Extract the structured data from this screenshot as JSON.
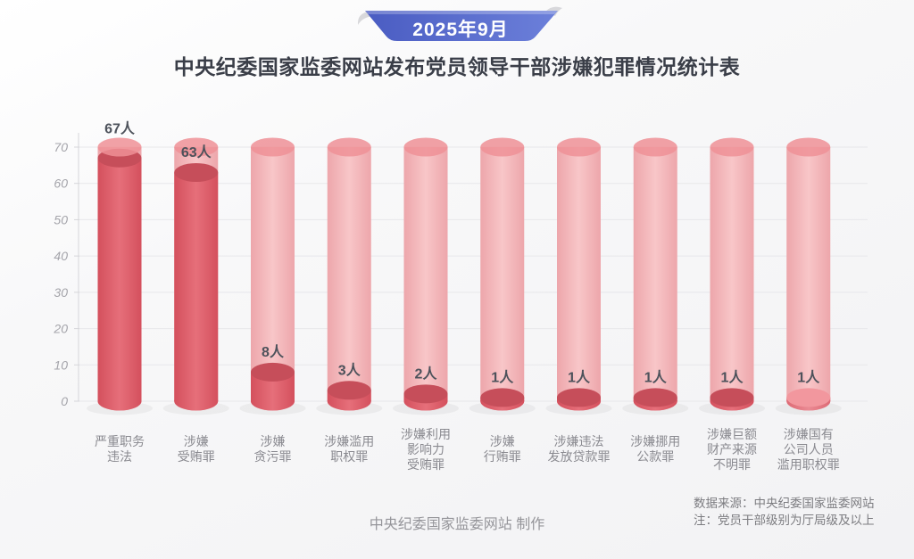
{
  "banner": {
    "period_label": "2025年9月",
    "color_left": "#4a5cc2",
    "color_right": "#6c80da",
    "curl_color": "#d8d8db"
  },
  "header": {
    "title": "中央纪委国家监委网站发布党员领导干部涉嫌犯罪情况统计表"
  },
  "footer": {
    "credit": "中央纪委国家监委网站 制作"
  },
  "notes": {
    "source": "数据来源：中央纪委国家监委网站",
    "remark": "注：党员干部级别为厅局级及以上"
  },
  "chart_data": {
    "type": "bar",
    "variant": "3d-cylinder",
    "title": "中央纪委国家监委网站发布党员领导干部涉嫌犯罪情况统计表",
    "period": "2025年9月",
    "categories": [
      "严重职务违法",
      "涉嫌受贿罪",
      "涉嫌贪污罪",
      "涉嫌滥用职权罪",
      "涉嫌利用影响力受贿罪",
      "涉嫌行贿罪",
      "涉嫌违法发放贷款罪",
      "涉嫌挪用公款罪",
      "涉嫌巨额财产来源不明罪",
      "涉嫌国有公司人员滥用职权罪"
    ],
    "category_lines": [
      [
        "严重职务",
        "违法"
      ],
      [
        "涉嫌",
        "受贿罪"
      ],
      [
        "涉嫌",
        "贪污罪"
      ],
      [
        "涉嫌滥用",
        "职权罪"
      ],
      [
        "涉嫌利用",
        "影响力",
        "受贿罪"
      ],
      [
        "涉嫌",
        "行贿罪"
      ],
      [
        "涉嫌违法",
        "发放贷款罪"
      ],
      [
        "涉嫌挪用",
        "公款罪"
      ],
      [
        "涉嫌巨额",
        "财产来源",
        "不明罪"
      ],
      [
        "涉嫌国有",
        "公司人员",
        "滥用职权罪"
      ]
    ],
    "values": [
      67,
      63,
      8,
      3,
      2,
      1,
      1,
      1,
      1,
      1
    ],
    "value_labels": [
      "67人",
      "63人",
      "8人",
      "3人",
      "2人",
      "1人",
      "1人",
      "1人",
      "1人",
      "1人"
    ],
    "unit_suffix": "人",
    "xlabel": "",
    "ylabel": "",
    "ylim": [
      0,
      70
    ],
    "yticks": [
      0,
      10,
      20,
      30,
      40,
      50,
      60,
      70
    ],
    "grid": true,
    "legend": "none",
    "light_bars": [
      9
    ],
    "colors": {
      "track_top": "#ee9096",
      "track_body_edge": "#eda6ab",
      "track_body_center": "#f8c6c8",
      "value_top": "#c64e5a",
      "value_body_edge": "#d4505d",
      "value_body_center": "#e66f7a",
      "value_top_light": "#f2979e",
      "value_body_edge_light": "#dd6a75",
      "value_body_center_light": "#ea8a93",
      "grid_color": "#e7e7ea",
      "axis_color": "#d6d6da",
      "tick_label_color": "#a4a4aa",
      "value_label_color": "#4d525b",
      "category_label_color": "#8a8a90",
      "shadow_color": "rgba(60,60,70,0.06)"
    }
  }
}
